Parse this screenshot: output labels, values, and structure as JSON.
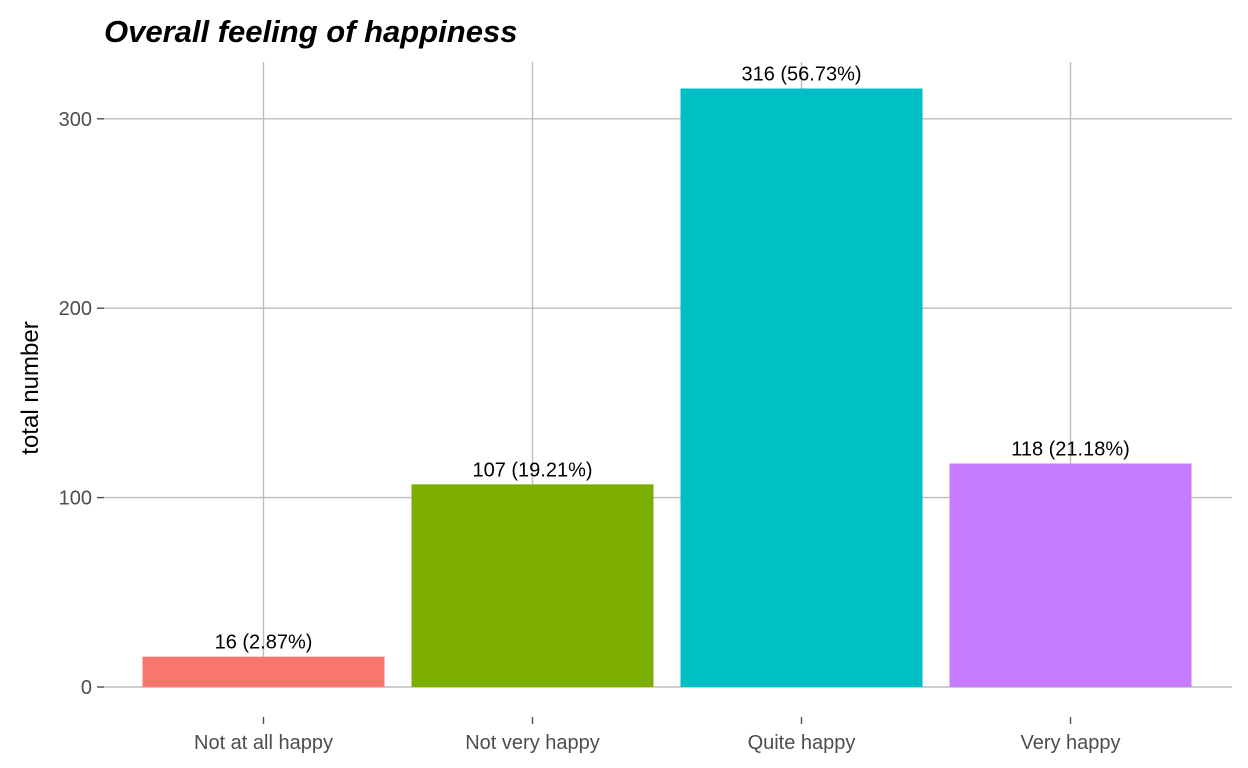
{
  "chart_data": {
    "type": "bar",
    "title": "Overall feeling of happiness",
    "xlabel": "",
    "ylabel": "total number",
    "categories": [
      "Not at all happy",
      "Not very happy",
      "Quite happy",
      "Very happy"
    ],
    "values": [
      16,
      107,
      316,
      118
    ],
    "data_labels": [
      "16 (2.87%)",
      "107 (19.21%)",
      "316 (56.73%)",
      "118 (21.18%)"
    ],
    "colors": [
      "#F8766D",
      "#7CAE00",
      "#00BFC4",
      "#C77CFF"
    ],
    "ylim": [
      0,
      325
    ],
    "yticks": [
      0,
      100,
      200,
      300
    ],
    "grid": true,
    "legend": "none"
  }
}
